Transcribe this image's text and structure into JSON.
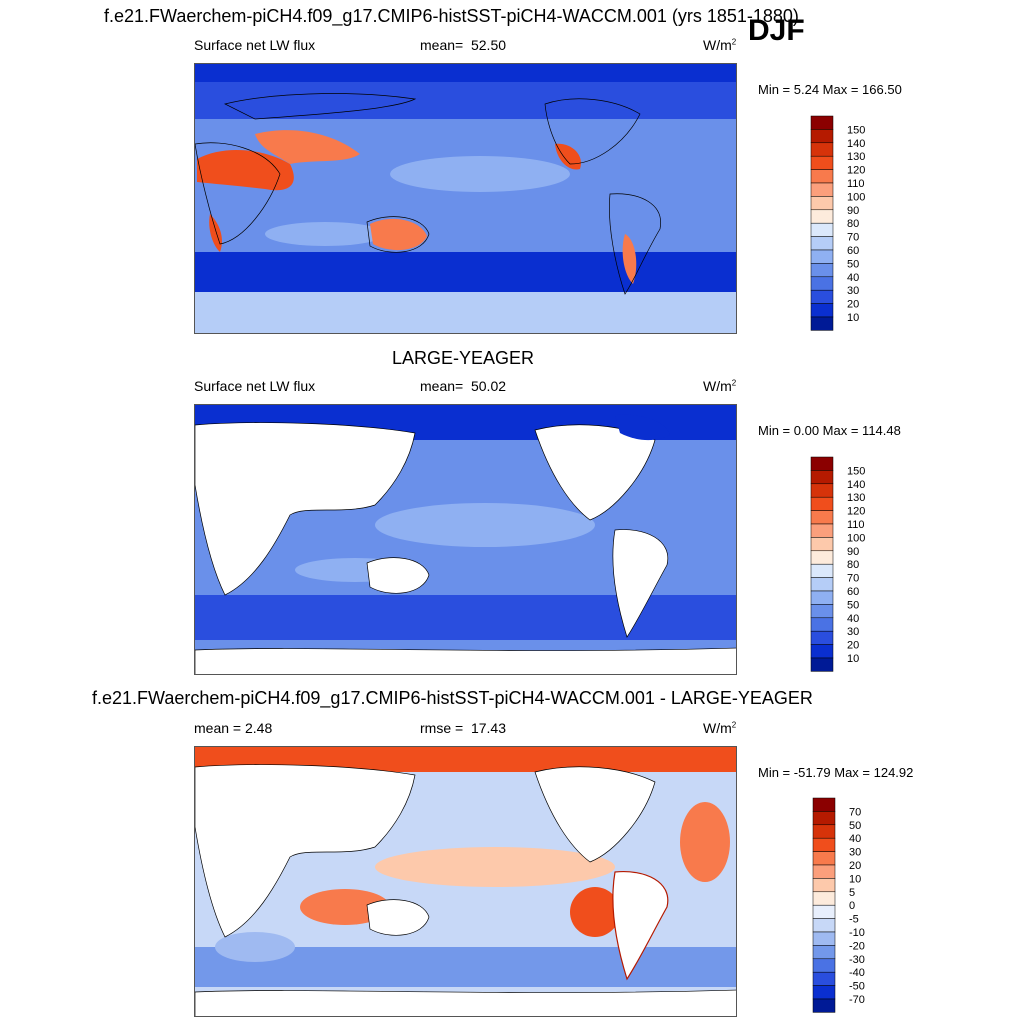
{
  "season": "DJF",
  "colors": {
    "ocean_deep": "#0a2fd0",
    "ocean_mid": "#4a74e6",
    "ocean_light": "#a8c4f2",
    "warm": "#f0643c",
    "hot": "#e23a16",
    "land": "#ffffff",
    "coast": "#000000"
  },
  "panels": [
    {
      "id": "model",
      "title": "f.e21.FWaerchem-piCH4.f09_g17.CMIP6-histSST-piCH4-WACCM.001 (yrs 1851-1880)",
      "left_label": "Surface net LW flux",
      "stat_label": "mean=",
      "stat_value": "52.50",
      "units": "W/m",
      "units_sup": "2",
      "range_text": "Min =   5.24 Max = 166.50",
      "colorbar": {
        "levels": [
          "150",
          "140",
          "130",
          "120",
          "110",
          "100",
          "90",
          "80",
          "70",
          "60",
          "50",
          "40",
          "30",
          "20",
          "10"
        ],
        "colors": [
          "#8b0000",
          "#b51a00",
          "#d6330a",
          "#f04e1c",
          "#f87a4c",
          "#fb9f7c",
          "#fdc9ab",
          "#fdebdc",
          "#dbe8fb",
          "#b5cdf7",
          "#8fb0f2",
          "#6a90ea",
          "#4a72e4",
          "#2a4ede",
          "#0a2fd0",
          "#001a96"
        ]
      }
    },
    {
      "id": "obs",
      "title": "LARGE-YEAGER",
      "left_label": "Surface net LW flux",
      "stat_label": "mean=",
      "stat_value": "50.02",
      "units": "W/m",
      "units_sup": "2",
      "range_text": "Min =   0.00 Max = 114.48",
      "colorbar": {
        "levels": [
          "150",
          "140",
          "130",
          "120",
          "110",
          "100",
          "90",
          "80",
          "70",
          "60",
          "50",
          "40",
          "30",
          "20",
          "10"
        ],
        "colors": [
          "#8b0000",
          "#b51a00",
          "#d6330a",
          "#f04e1c",
          "#f87a4c",
          "#fb9f7c",
          "#fdc9ab",
          "#fdebdc",
          "#dbe8fb",
          "#b5cdf7",
          "#8fb0f2",
          "#6a90ea",
          "#4a72e4",
          "#2a4ede",
          "#0a2fd0",
          "#001a96"
        ]
      }
    },
    {
      "id": "diff",
      "title": "f.e21.FWaerchem-piCH4.f09_g17.CMIP6-histSST-piCH4-WACCM.001 - LARGE-YEAGER",
      "left_label": "mean =   2.48",
      "stat_label": "rmse =",
      "stat_value": "17.43",
      "units": "W/m",
      "units_sup": "2",
      "range_text": "Min = -51.79 Max = 124.92",
      "colorbar": {
        "levels": [
          "70",
          "50",
          "40",
          "30",
          "20",
          "10",
          "5",
          "0",
          "-5",
          "-10",
          "-20",
          "-30",
          "-40",
          "-50",
          "-70"
        ],
        "colors": [
          "#8b0000",
          "#b51a00",
          "#d6330a",
          "#f04e1c",
          "#f87a4c",
          "#fb9f7c",
          "#fdc9ab",
          "#fdebdc",
          "#e8effc",
          "#c7d8f7",
          "#9fbaf1",
          "#7398ea",
          "#4a72e4",
          "#2a4ede",
          "#0a2fd0",
          "#001a96"
        ]
      }
    }
  ]
}
